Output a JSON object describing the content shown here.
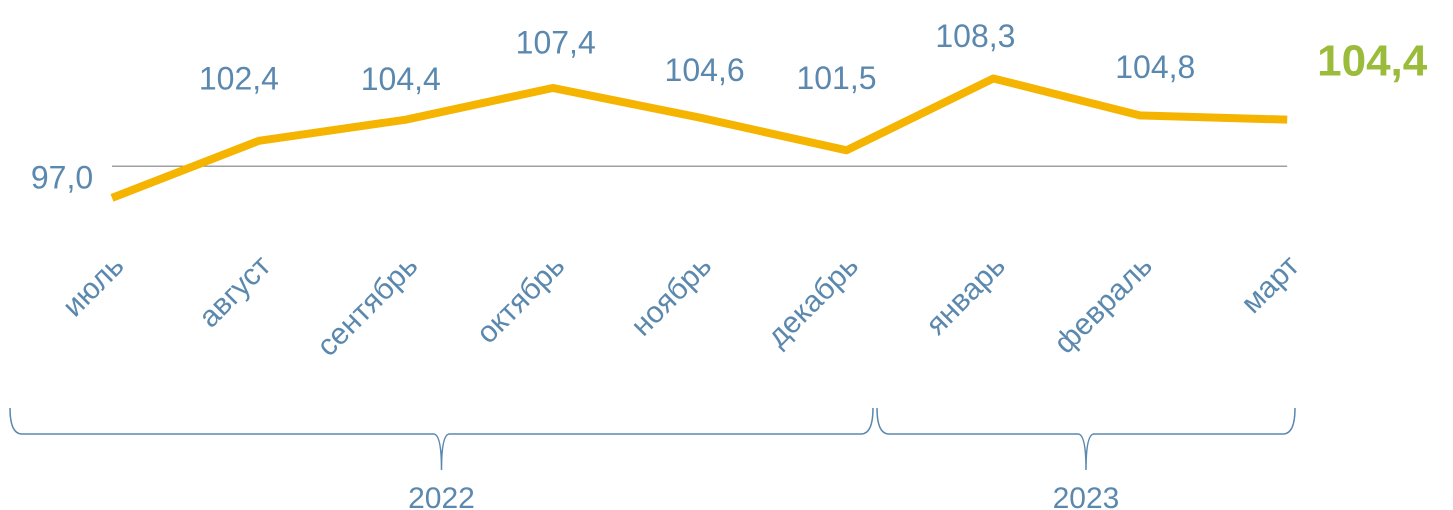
{
  "chart_data": {
    "type": "line",
    "categories": [
      "июль",
      "август",
      "сентябрь",
      "октябрь",
      "ноябрь",
      "декабрь",
      "январь",
      "февраль",
      "март"
    ],
    "x_groups": [
      "2022",
      "2023"
    ],
    "series": [
      {
        "color": "#f5b400",
        "values": [
          97.0,
          102.4,
          104.4,
          107.4,
          104.6,
          101.5,
          108.3,
          104.8,
          104.4
        ],
        "value_labels": [
          "97,0",
          "102,4",
          "104,4",
          "107,4",
          "104,6",
          "101,5",
          "108,3",
          "104,8",
          "104,4"
        ]
      }
    ],
    "ylim": [
      95,
      110
    ],
    "reference_line": 100,
    "label_color": "#5b88ae",
    "highlight_last_color": "#9bbb3b"
  }
}
